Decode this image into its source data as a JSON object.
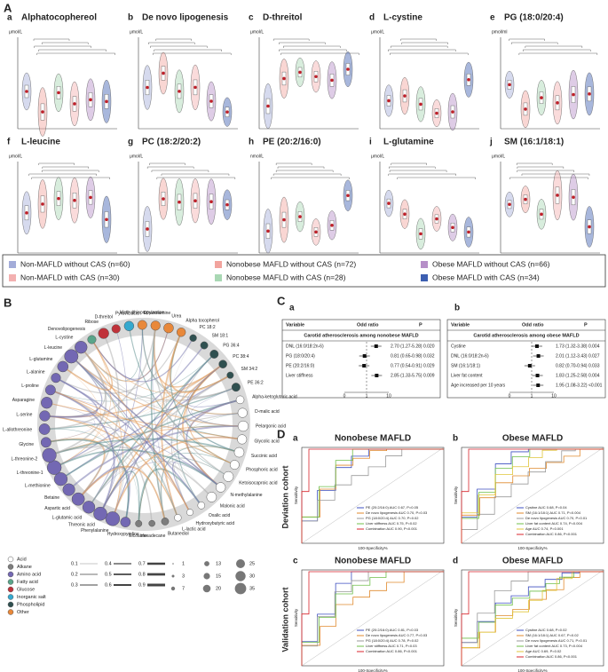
{
  "panel_a": {
    "label": "A",
    "plots": [
      {
        "letter": "a",
        "title": "Alphatocophereol",
        "unit": "μmol/L"
      },
      {
        "letter": "b",
        "title": "De novo lipogenesis",
        "unit": "μmol/L"
      },
      {
        "letter": "c",
        "title": "D-threitol",
        "unit": "μmol/L"
      },
      {
        "letter": "d",
        "title": "L-cystine",
        "unit": "μmol/L"
      },
      {
        "letter": "e",
        "title": "PG (18:0/20:4)",
        "unit": "pmol/ml"
      },
      {
        "letter": "f",
        "title": "L-leucine",
        "unit": "μmol/L"
      },
      {
        "letter": "g",
        "title": "PC (18:2/20:2)",
        "unit": "μmol/L"
      },
      {
        "letter": "h",
        "title": "PE (20:2/16:0)",
        "unit": "nmol/L"
      },
      {
        "letter": "i",
        "title": "L-glutamine",
        "unit": "μmol/L"
      },
      {
        "letter": "j",
        "title": "SM (16:1/18:1)",
        "unit": "μmol/L"
      }
    ],
    "legend": [
      {
        "label": "Non-MAFLD without CAS (n=60)",
        "color": "#a3acd9"
      },
      {
        "label": "Nonobese MAFLD without CAS (n=72)",
        "color": "#f2a49e"
      },
      {
        "label": "Obese MAFLD without CAS (n=66)",
        "color": "#b68fc8"
      },
      {
        "label": "Non-MAFLD with CAS (n=30)",
        "color": "#f3b0b0"
      },
      {
        "label": "Nonobese MAFLD with CAS (n=28)",
        "color": "#a9d8b4"
      },
      {
        "label": "Obese MAFLD with CAS (n=34)",
        "color": "#3d5fb1"
      }
    ]
  },
  "panel_b": {
    "label": "B",
    "groups": [
      {
        "label": "Acid",
        "color": "#ffffff",
        "nodes": [
          "Alpha-ketoglutaric acid",
          "D-malic acid",
          "Pelargonic acid",
          "Glycolic acid",
          "Succinic acid",
          "Phosphoric acid",
          "Ketoisocaproic acid",
          "N-methylalanine",
          "Malonic acid",
          "Oxalic acid",
          "Hydroxybutyric acid",
          "L-lactic acid"
        ]
      },
      {
        "label": "Alkane",
        "color": "#7d7d7d",
        "nodes": [
          "Butanediol",
          "Hexadecane",
          "Eicosane"
        ]
      },
      {
        "label": "Amino acid",
        "color": "#7368b3",
        "nodes": [
          "Hydroxypyridine",
          "Phenylalanine",
          "Threonic acid",
          "L-glutamic acid",
          "Aspartic acid",
          "Betaine",
          "L-methionine",
          "L-threonine-1",
          "L-threonine-2",
          "Glycine",
          "L-allothreonine",
          "L-serine",
          "Asparagine",
          "L-proline",
          "L-alanine",
          "L-glutamine",
          "L-leucine",
          "L-cystine"
        ]
      },
      {
        "label": "Fatty acid",
        "color": "#5aa58a",
        "nodes": [
          "Denovolipogenesis"
        ]
      },
      {
        "label": "Glucose",
        "color": "#c0323a",
        "nodes": [
          "Ribose",
          "D-threitol"
        ]
      },
      {
        "label": "Inorganic salt",
        "color": "#35a9cf",
        "nodes": [
          "Pyruvic acid"
        ]
      },
      {
        "label": "Phospholipid",
        "color": "#2f5050",
        "nodes": [
          "PC 18:2",
          "SM 18:1",
          "PG 36:4",
          "PC 38:4",
          "SM 34:2",
          "PE 36:2"
        ]
      },
      {
        "label": "Other",
        "color": "#e8883a",
        "nodes": [
          "Methylthiopropylamine",
          "Ethanolamine",
          "Urea",
          "Alpha tocopherol"
        ]
      }
    ],
    "edge_widths": [
      0.1,
      0.2,
      0.3,
      0.4,
      0.5,
      0.6,
      0.7,
      0.8,
      0.9
    ],
    "node_sizes": [
      1,
      3,
      7,
      13,
      15,
      20,
      25,
      30,
      35
    ]
  },
  "panel_c": {
    "label": "C",
    "tables": [
      {
        "letter": "a",
        "header": [
          "Variable",
          "Odd ratio",
          "P"
        ],
        "group": "Carotid atherosclerosis among nonobese MAFLD",
        "rows": [
          [
            "DNL (16:0/18:2n-6)",
            "2.70 (1.27-5.28) 0.020"
          ],
          [
            "PG (18:0/20:4)",
            "0.81 (0.65-0.98) 0.032"
          ],
          [
            "PE (20:2/16:0)",
            "0.77 (0.54-0.91) 0.029"
          ],
          [
            "Liver stiffness",
            "2.85 (1.33-5.75) 0.009"
          ]
        ],
        "or": [
          2.7,
          0.81,
          0.77,
          2.85
        ],
        "axis": [
          0,
          1,
          10
        ]
      },
      {
        "letter": "b",
        "header": [
          "Variable",
          "Odd ratio",
          "P"
        ],
        "group": "Carotid atherosclerosis among obese MAFLD",
        "rows": [
          [
            "Cystine",
            "1.73 (1.32-3.38) 0.004"
          ],
          [
            "DNL (16:0/18:2n-6)",
            "2.01 (1.12-3.43) 0.027"
          ],
          [
            "SM (16:1/18:1)",
            "0.82 (0.70-0.94) 0.033"
          ],
          [
            "Liver fat content",
            "1.83 (1.25-2.58) 0.004"
          ],
          [
            "Age increased per 10 years",
            "1.95 (1.08-3.22) <0.001"
          ]
        ],
        "or": [
          1.73,
          2.01,
          0.82,
          1.83,
          1.95
        ],
        "axis": [
          0,
          1,
          10
        ]
      }
    ]
  },
  "panel_d": {
    "label": "D",
    "rows": [
      "Deviation cohort",
      "Validation cohort"
    ],
    "x_label": "100-Specificity%",
    "y_label": "Sensitivity",
    "plots": [
      {
        "letter": "a",
        "title": "Nonobese MAFLD",
        "curves": [
          {
            "name": "PE (20:2/16:0) AUC 0.67, P=0.05",
            "color": "#3c4fc0"
          },
          {
            "name": "De novo lipogenesis AUC 0.70, P=0.03",
            "color": "#e08a2e"
          },
          {
            "name": "PG (18:0/20:4) AUC 0.70, P=0.02",
            "color": "#9a9a9a"
          },
          {
            "name": "Liver stiffness AUC 0.75, P=0.02",
            "color": "#6fbf4a"
          },
          {
            "name": "Combination AUC 0.90, P<0.001",
            "color": "#d8252c"
          }
        ]
      },
      {
        "letter": "b",
        "title": "Obese MAFLD",
        "curves": [
          {
            "name": "Cystine AUC 0.68, P=0.04",
            "color": "#3c4fc0"
          },
          {
            "name": "SM (16:1/18:1) AUC 0.71, P=0.004",
            "color": "#e08a2e"
          },
          {
            "name": "De novo lipogenesis AUC 0.70, P=0.01",
            "color": "#9a9a9a"
          },
          {
            "name": "Liver fat content AUC 0.74, P=0.004",
            "color": "#6fbf4a"
          },
          {
            "name": "Age AUC 0.74, P=0.001",
            "color": "#e0c53a"
          },
          {
            "name": "Combination AUC 0.86, P<0.001",
            "color": "#d8252c"
          }
        ]
      },
      {
        "letter": "c",
        "title": "Nonobese MAFLD",
        "curves": [
          {
            "name": "PE (20:2/16:0) AUC 0.81, P=0.03",
            "color": "#3c4fc0"
          },
          {
            "name": "De novo lipogenesis AUC 0.77, P=0.03",
            "color": "#e08a2e"
          },
          {
            "name": "PG (18:0/20:4) AUC 0.78, P=0.02",
            "color": "#9a9a9a"
          },
          {
            "name": "Liver stiffness AUC 0.71, P=0.03",
            "color": "#6fbf4a"
          },
          {
            "name": "Combination AUC 0.86, P<0.001",
            "color": "#d8252c"
          }
        ]
      },
      {
        "letter": "d",
        "title": "Obese MAFLD",
        "curves": [
          {
            "name": "Cystine AUC 0.68, P=0.02",
            "color": "#3c4fc0"
          },
          {
            "name": "SM (16:1/18:1) AUC 0.67, P=0.02",
            "color": "#e08a2e"
          },
          {
            "name": "De novo lipogenesis AUC 0.71, P=0.01",
            "color": "#9a9a9a"
          },
          {
            "name": "Liver fat content AUC 0.73, P=0.004",
            "color": "#6fbf4a"
          },
          {
            "name": "Age AUC 0.69, P=0.02",
            "color": "#e0c53a"
          },
          {
            "name": "Combination AUC 0.86, P<0.001",
            "color": "#d8252c"
          }
        ]
      }
    ]
  }
}
